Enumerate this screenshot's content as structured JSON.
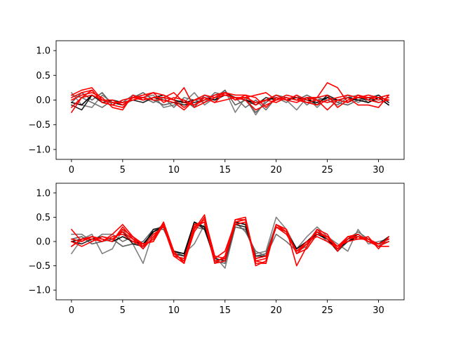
{
  "chart_data": [
    {
      "type": "line",
      "title": "",
      "xlabel": "",
      "ylabel": "",
      "xlim": [
        -1.5,
        32.5
      ],
      "ylim": [
        -1.2,
        1.2
      ],
      "xticks": [
        0,
        5,
        10,
        15,
        20,
        25,
        30
      ],
      "yticks": [
        -1.0,
        -0.5,
        0.0,
        0.5,
        1.0
      ],
      "xtick_labels": [
        "0",
        "5",
        "10",
        "15",
        "20",
        "25",
        "30"
      ],
      "ytick_labels": [
        "−1.0",
        "−0.5",
        "0.0",
        "0.5",
        "1.0"
      ],
      "grid": false,
      "legend": "none",
      "x": [
        0,
        1,
        2,
        3,
        4,
        5,
        6,
        7,
        8,
        9,
        10,
        11,
        12,
        13,
        14,
        15,
        16,
        17,
        18,
        19,
        20,
        21,
        22,
        23,
        24,
        25,
        26,
        27,
        28,
        29,
        30,
        31
      ],
      "series": [
        {
          "color": "#808080",
          "values": [
            0.15,
            -0.1,
            -0.15,
            0.1,
            -0.05,
            -0.1,
            0.0,
            0.05,
            0.1,
            -0.15,
            -0.1,
            -0.05,
            0.15,
            -0.1,
            0.05,
            0.2,
            -0.25,
            0.05,
            -0.3,
            0.0,
            0.1,
            0.0,
            -0.2,
            0.05,
            -0.15,
            0.05,
            -0.05,
            0.1,
            -0.05,
            0.05,
            0.1,
            -0.05
          ]
        },
        {
          "color": "#707070",
          "values": [
            0.1,
            0.05,
            -0.05,
            -0.15,
            0.0,
            -0.05,
            0.1,
            0.05,
            -0.05,
            0.05,
            -0.15,
            0.05,
            0.0,
            -0.05,
            0.15,
            0.1,
            0.05,
            -0.15,
            0.0,
            -0.2,
            0.05,
            -0.05,
            0.1,
            -0.1,
            0.05,
            0.0,
            -0.1,
            0.05,
            0.1,
            -0.05,
            0.05,
            0.1
          ]
        },
        {
          "color": "#606060",
          "values": [
            -0.05,
            0.15,
            0.0,
            0.15,
            -0.1,
            0.0,
            0.05,
            0.15,
            0.0,
            -0.1,
            -0.05,
            0.0,
            -0.15,
            0.1,
            0.0,
            0.2,
            -0.1,
            0.0,
            -0.25,
            -0.05,
            0.1,
            0.05,
            0.0,
            0.1,
            0.0,
            0.05,
            -0.05,
            -0.1,
            0.0,
            0.05,
            -0.05,
            0.0
          ]
        },
        {
          "color": "#202020",
          "values": [
            -0.1,
            -0.2,
            0.1,
            -0.05,
            0.0,
            -0.05,
            0.0,
            -0.05,
            0.05,
            0.0,
            -0.05,
            -0.1,
            -0.05,
            0.0,
            0.1,
            0.15,
            0.05,
            0.0,
            -0.1,
            0.05,
            0.0,
            0.05,
            0.0,
            0.05,
            -0.1,
            0.1,
            0.0,
            -0.05,
            0.05,
            0.0,
            0.1,
            -0.05
          ]
        },
        {
          "color": "#000000",
          "values": [
            -0.05,
            -0.1,
            0.1,
            0.0,
            -0.05,
            -0.1,
            0.05,
            0.0,
            0.05,
            0.1,
            0.0,
            -0.05,
            0.0,
            0.05,
            0.0,
            0.1,
            0.05,
            0.0,
            -0.05,
            0.0,
            0.05,
            0.0,
            0.05,
            0.0,
            -0.05,
            0.05,
            0.0,
            0.05,
            0.0,
            -0.05,
            0.05,
            -0.1
          ]
        },
        {
          "color": "#ff0000",
          "values": [
            -0.25,
            0.05,
            0.2,
            -0.05,
            -0.1,
            -0.15,
            0.05,
            0.05,
            0.15,
            0.1,
            0.0,
            -0.15,
            0.0,
            0.05,
            -0.05,
            0.0,
            0.05,
            0.0,
            -0.2,
            -0.1,
            0.0,
            0.1,
            0.05,
            -0.05,
            0.0,
            -0.2,
            0.0,
            -0.05,
            0.1,
            0.0,
            -0.05,
            0.0
          ]
        },
        {
          "color": "#ff0000",
          "values": [
            0.05,
            0.15,
            0.2,
            -0.05,
            -0.1,
            0.0,
            0.05,
            0.1,
            0.15,
            -0.05,
            0.05,
            0.0,
            -0.1,
            0.0,
            0.1,
            0.15,
            0.0,
            0.1,
            -0.1,
            0.0,
            -0.05,
            0.05,
            0.0,
            0.05,
            0.05,
            0.35,
            0.25,
            -0.05,
            0.1,
            0.05,
            0.05,
            0.0
          ]
        },
        {
          "color": "#ff0000",
          "values": [
            0.0,
            0.1,
            0.15,
            0.05,
            -0.15,
            -0.2,
            0.1,
            0.0,
            0.05,
            0.05,
            0.15,
            -0.05,
            -0.1,
            0.05,
            -0.05,
            0.15,
            0.0,
            0.05,
            0.1,
            0.15,
            0.0,
            0.05,
            0.0,
            -0.05,
            -0.1,
            0.0,
            0.05,
            0.1,
            0.05,
            0.1,
            0.05,
            0.1
          ]
        },
        {
          "color": "#ff0000",
          "values": [
            0.1,
            0.2,
            0.25,
            0.0,
            0.0,
            -0.1,
            0.05,
            0.0,
            0.05,
            0.05,
            0.0,
            0.25,
            -0.15,
            -0.05,
            0.05,
            0.1,
            0.05,
            0.05,
            -0.05,
            0.0,
            0.1,
            0.0,
            0.1,
            0.0,
            0.05,
            0.1,
            -0.15,
            0.0,
            0.05,
            0.05,
            0.0,
            0.05
          ]
        },
        {
          "color": "#ff0000",
          "values": [
            -0.15,
            0.05,
            0.1,
            0.0,
            -0.05,
            -0.05,
            0.0,
            0.05,
            0.0,
            0.0,
            -0.05,
            -0.2,
            0.0,
            0.1,
            0.05,
            0.15,
            0.1,
            0.1,
            0.05,
            -0.15,
            0.05,
            0.0,
            -0.05,
            0.05,
            0.0,
            -0.05,
            0.0,
            0.05,
            -0.1,
            -0.1,
            -0.15,
            0.1
          ]
        }
      ]
    },
    {
      "type": "line",
      "title": "",
      "xlabel": "",
      "ylabel": "",
      "xlim": [
        -1.5,
        32.5
      ],
      "ylim": [
        -1.2,
        1.2
      ],
      "xticks": [
        0,
        5,
        10,
        15,
        20,
        25,
        30
      ],
      "yticks": [
        -1.0,
        -0.5,
        0.0,
        0.5,
        1.0
      ],
      "xtick_labels": [
        "0",
        "5",
        "10",
        "15",
        "20",
        "25",
        "30"
      ],
      "ytick_labels": [
        "−1.0",
        "−0.5",
        "0.0",
        "0.5",
        "1.0"
      ],
      "grid": false,
      "legend": "none",
      "x": [
        0,
        1,
        2,
        3,
        4,
        5,
        6,
        7,
        8,
        9,
        10,
        11,
        12,
        13,
        14,
        15,
        16,
        17,
        18,
        19,
        20,
        21,
        22,
        23,
        24,
        25,
        26,
        27,
        28,
        29,
        30,
        31
      ],
      "series": [
        {
          "color": "#808080",
          "values": [
            -0.25,
            0.05,
            0.15,
            -0.25,
            -0.15,
            0.25,
            -0.05,
            -0.45,
            0.2,
            0.35,
            -0.2,
            -0.25,
            -0.05,
            0.35,
            -0.3,
            -0.55,
            0.3,
            0.25,
            -0.25,
            -0.2,
            0.5,
            0.25,
            -0.15,
            0.1,
            0.3,
            0.1,
            -0.05,
            -0.2,
            0.25,
            -0.05,
            0.0,
            0.05
          ]
        },
        {
          "color": "#707070",
          "values": [
            0.15,
            0.15,
            0.0,
            0.15,
            0.15,
            0.0,
            0.1,
            -0.15,
            0.2,
            0.3,
            -0.3,
            -0.35,
            0.3,
            0.25,
            -0.35,
            -0.4,
            0.4,
            0.2,
            -0.2,
            -0.3,
            0.15,
            0.0,
            -0.2,
            -0.1,
            0.2,
            0.0,
            -0.15,
            0.05,
            0.2,
            0.05,
            -0.1,
            0.1
          ]
        },
        {
          "color": "#606060",
          "values": [
            0.05,
            0.1,
            -0.05,
            0.0,
            0.05,
            -0.1,
            -0.05,
            0.0,
            0.25,
            0.25,
            -0.2,
            -0.3,
            0.35,
            0.3,
            -0.4,
            -0.45,
            0.3,
            0.25,
            -0.3,
            -0.25,
            0.35,
            0.2,
            -0.2,
            -0.05,
            0.25,
            0.05,
            -0.2,
            0.0,
            0.15,
            0.0,
            -0.05,
            0.0
          ]
        },
        {
          "color": "#202020",
          "values": [
            0.0,
            -0.05,
            0.05,
            0.1,
            0.05,
            0.2,
            -0.05,
            -0.1,
            0.25,
            0.3,
            -0.25,
            -0.3,
            0.4,
            0.25,
            -0.35,
            -0.4,
            0.35,
            0.3,
            -0.3,
            -0.3,
            0.3,
            0.15,
            -0.15,
            0.0,
            0.2,
            0.05,
            -0.2,
            0.05,
            0.15,
            0.0,
            -0.05,
            0.1
          ]
        },
        {
          "color": "#000000",
          "values": [
            0.0,
            0.05,
            0.1,
            0.05,
            0.0,
            0.1,
            0.0,
            -0.05,
            0.2,
            0.3,
            -0.2,
            -0.25,
            0.4,
            0.3,
            -0.4,
            -0.35,
            0.4,
            0.35,
            -0.35,
            -0.3,
            0.3,
            0.2,
            -0.15,
            0.0,
            0.15,
            0.05,
            -0.15,
            0.0,
            0.1,
            0.05,
            -0.05,
            0.05
          ]
        },
        {
          "color": "#ff0000",
          "values": [
            0.25,
            0.0,
            0.1,
            0.0,
            0.15,
            0.35,
            0.1,
            -0.1,
            0.05,
            0.4,
            -0.3,
            -0.45,
            0.25,
            0.55,
            -0.45,
            -0.3,
            0.45,
            0.5,
            -0.45,
            -0.45,
            0.35,
            0.25,
            -0.5,
            -0.1,
            0.25,
            0.15,
            -0.2,
            0.1,
            0.05,
            0.1,
            -0.15,
            0.1
          ]
        },
        {
          "color": "#ff0000",
          "values": [
            -0.1,
            0.05,
            0.1,
            0.05,
            0.0,
            0.25,
            0.1,
            -0.05,
            0.0,
            0.35,
            -0.25,
            -0.4,
            0.3,
            0.45,
            -0.35,
            -0.2,
            0.4,
            0.45,
            -0.4,
            -0.35,
            0.3,
            0.2,
            -0.25,
            -0.05,
            0.2,
            0.1,
            -0.15,
            0.05,
            0.1,
            0.05,
            -0.05,
            0.05
          ]
        },
        {
          "color": "#ff0000",
          "values": [
            0.0,
            -0.1,
            0.0,
            0.1,
            0.05,
            0.2,
            0.05,
            -0.15,
            0.1,
            0.35,
            -0.25,
            -0.4,
            0.35,
            0.4,
            -0.45,
            -0.4,
            0.45,
            0.45,
            -0.4,
            -0.45,
            0.35,
            0.25,
            -0.25,
            -0.15,
            0.15,
            0.1,
            -0.1,
            0.0,
            0.05,
            0.05,
            -0.1,
            -0.1
          ]
        },
        {
          "color": "#ff0000",
          "values": [
            -0.1,
            0.05,
            0.05,
            0.0,
            0.1,
            0.15,
            0.0,
            -0.1,
            0.15,
            0.3,
            -0.3,
            -0.35,
            0.3,
            0.4,
            -0.4,
            -0.35,
            0.35,
            0.4,
            -0.35,
            -0.3,
            0.3,
            0.15,
            -0.2,
            0.0,
            0.1,
            0.0,
            -0.15,
            0.1,
            0.15,
            0.0,
            -0.1,
            0.0
          ]
        },
        {
          "color": "#ff0000",
          "values": [
            0.05,
            0.0,
            0.1,
            0.05,
            0.0,
            0.3,
            0.05,
            -0.05,
            0.0,
            0.4,
            -0.2,
            -0.45,
            0.2,
            0.5,
            -0.3,
            -0.35,
            0.4,
            0.45,
            -0.5,
            -0.4,
            0.35,
            0.2,
            -0.2,
            -0.05,
            0.25,
            0.05,
            -0.1,
            0.1,
            0.1,
            0.0,
            -0.05,
            0.05
          ]
        }
      ]
    }
  ]
}
